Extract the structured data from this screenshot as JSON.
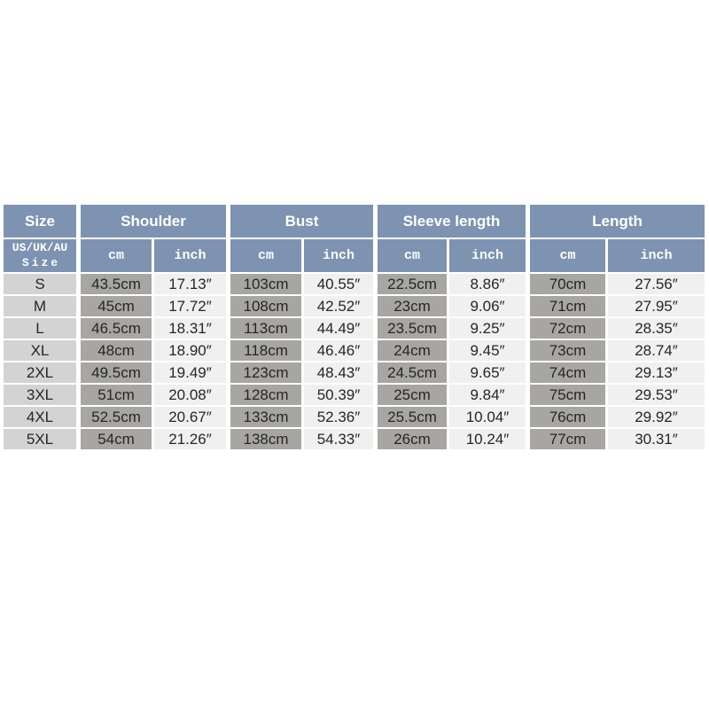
{
  "chart_data": {
    "type": "table",
    "column_groups": [
      {
        "label": "Size",
        "span": 1
      },
      {
        "label": "Shoulder",
        "span": 2
      },
      {
        "label": "Bust",
        "span": 2
      },
      {
        "label": "Sleeve length",
        "span": 2
      },
      {
        "label": "Length",
        "span": 2
      }
    ],
    "subheader": {
      "size_line1": "US/UK/AU",
      "size_line2": "Size",
      "cm": "cm",
      "inch": "inch"
    },
    "rows": [
      [
        "S",
        "43.5cm",
        "17.13″",
        "103cm",
        "40.55″",
        "22.5cm",
        "8.86″",
        "70cm",
        "27.56″"
      ],
      [
        "M",
        "45cm",
        "17.72″",
        "108cm",
        "42.52″",
        "23cm",
        "9.06″",
        "71cm",
        "27.95″"
      ],
      [
        "L",
        "46.5cm",
        "18.31″",
        "113cm",
        "44.49″",
        "23.5cm",
        "9.25″",
        "72cm",
        "28.35″"
      ],
      [
        "XL",
        "48cm",
        "18.90″",
        "118cm",
        "46.46″",
        "24cm",
        "9.45″",
        "73cm",
        "28.74″"
      ],
      [
        "2XL",
        "49.5cm",
        "19.49″",
        "123cm",
        "48.43″",
        "24.5cm",
        "9.65″",
        "74cm",
        "29.13″"
      ],
      [
        "3XL",
        "51cm",
        "20.08″",
        "128cm",
        "50.39″",
        "25cm",
        "9.84″",
        "75cm",
        "29.53″"
      ],
      [
        "4XL",
        "52.5cm",
        "20.67″",
        "133cm",
        "52.36″",
        "25.5cm",
        "10.04″",
        "76cm",
        "29.92″"
      ],
      [
        "5XL",
        "54cm",
        "21.26″",
        "138cm",
        "54.33″",
        "26cm",
        "10.24″",
        "77cm",
        "30.31″"
      ]
    ]
  },
  "colors": {
    "header_bg": "#7e93b1",
    "header_text": "#ffffff",
    "size_cell_bg": "#d3d3d3",
    "cm_cell_bg": "#a8a6a3",
    "inch_cell_bg": "#f0f0f0",
    "data_text": "#262626",
    "page_bg": "#ffffff"
  }
}
